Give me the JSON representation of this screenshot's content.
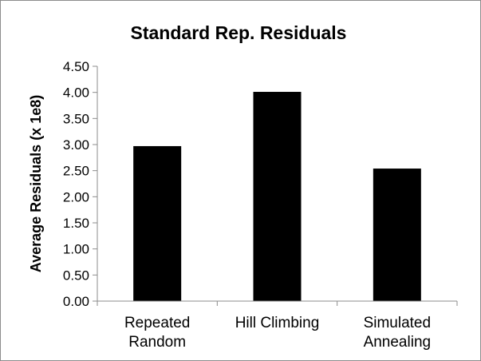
{
  "chart_data": {
    "type": "bar",
    "title": "Standard Rep. Residuals",
    "xlabel": "",
    "ylabel": "Average Residuals (x 1e8)",
    "categories": [
      [
        "Repeated",
        "Random"
      ],
      [
        "Hill Climbing"
      ],
      [
        "Simulated",
        "Annealing"
      ]
    ],
    "values": [
      2.97,
      4.01,
      2.54
    ],
    "ylim": [
      0,
      4.5
    ],
    "yticks": [
      "0.00",
      "0.50",
      "1.00",
      "1.50",
      "2.00",
      "2.50",
      "3.00",
      "3.50",
      "4.00",
      "4.50"
    ],
    "ytick_values": [
      0,
      0.5,
      1,
      1.5,
      2,
      2.5,
      3,
      3.5,
      4,
      4.5
    ],
    "grid": false,
    "legend": "none",
    "bar_color": "#000000"
  }
}
